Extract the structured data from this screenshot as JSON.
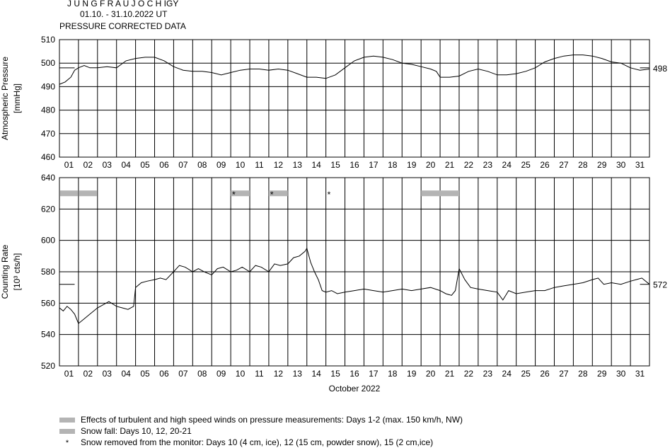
{
  "header": {
    "station": "J U N G F R A U J O C H  IGY",
    "period": "01.10. - 31.10.2022  UT",
    "subtitle": "PRESSURE CORRECTED DATA"
  },
  "chart_data": [
    {
      "type": "line",
      "name": "pressure",
      "ylabel": "Atmospheric Pressure",
      "yunit": "[mmHg]",
      "ylim": [
        460,
        510
      ],
      "yticks": [
        460,
        470,
        480,
        490,
        500,
        510
      ],
      "reference_value": 498,
      "reference_label": "498",
      "grid": true,
      "x_start_day": 1,
      "x_end_day": 32,
      "day_labels": [
        "01",
        "02",
        "03",
        "04",
        "05",
        "06",
        "07",
        "08",
        "09",
        "10",
        "11",
        "12",
        "13",
        "14",
        "15",
        "16",
        "17",
        "18",
        "19",
        "20",
        "21",
        "22",
        "23",
        "24",
        "25",
        "26",
        "27",
        "28",
        "29",
        "30",
        "31"
      ],
      "series": [
        {
          "x": [
            1.0,
            1.3,
            1.6,
            1.8,
            2.0,
            2.3,
            2.6,
            3.0,
            3.5,
            4.0,
            4.5,
            5.0,
            5.5,
            6.0,
            6.5,
            7.0,
            7.5,
            8.0,
            8.5,
            9.0,
            9.5,
            10.0,
            10.5,
            11.0,
            11.5,
            12.0,
            12.5,
            13.0,
            13.5,
            14.0,
            14.5,
            15.0,
            15.5,
            16.0,
            16.5,
            17.0,
            17.5,
            18.0,
            18.5,
            19.0,
            19.5,
            20.0,
            20.5,
            20.8,
            21.0,
            21.5,
            22.0,
            22.5,
            23.0,
            23.5,
            24.0,
            24.5,
            25.0,
            25.5,
            26.0,
            26.5,
            27.0,
            27.5,
            28.0,
            28.5,
            29.0,
            29.5,
            30.0,
            30.5,
            31.0,
            31.5,
            32.0
          ],
          "values": [
            491,
            492,
            494,
            497,
            498,
            499,
            498,
            498,
            498.5,
            498,
            501,
            502,
            502.5,
            502.5,
            501,
            498.5,
            497,
            496.5,
            496.5,
            496,
            495,
            496,
            497,
            497.5,
            497.5,
            497,
            497.5,
            497,
            495.5,
            494,
            494,
            493.5,
            495,
            498,
            501,
            502.5,
            503,
            502.5,
            501.5,
            500,
            499.5,
            498.5,
            497.5,
            496.5,
            494,
            494,
            494.5,
            496.5,
            497.5,
            496.5,
            495,
            495,
            495.5,
            496.5,
            498,
            500.5,
            502,
            503,
            503.5,
            503.5,
            503,
            502,
            500.5,
            500,
            498,
            497,
            497.5
          ]
        }
      ]
    },
    {
      "type": "line",
      "name": "counting_rate",
      "ylabel": "Counting Rate",
      "yunit": "[10³ cts/h]",
      "ylim": [
        520,
        640
      ],
      "yticks": [
        520,
        540,
        560,
        580,
        600,
        620,
        640
      ],
      "reference_value": 572,
      "reference_label": "572",
      "xlabel": "October 2022",
      "grid": true,
      "x_start_day": 1,
      "x_end_day": 32,
      "day_labels": [
        "01",
        "02",
        "03",
        "04",
        "05",
        "06",
        "07",
        "08",
        "09",
        "10",
        "11",
        "12",
        "13",
        "14",
        "15",
        "16",
        "17",
        "18",
        "19",
        "20",
        "21",
        "22",
        "23",
        "24",
        "25",
        "26",
        "27",
        "28",
        "29",
        "30",
        "31"
      ],
      "series": [
        {
          "x": [
            1.0,
            1.2,
            1.4,
            1.6,
            1.8,
            2.0,
            2.3,
            2.6,
            3.0,
            3.3,
            3.6,
            4.0,
            4.3,
            4.6,
            4.9,
            5.0,
            5.3,
            5.6,
            6.0,
            6.3,
            6.6,
            7.0,
            7.3,
            7.6,
            8.0,
            8.3,
            8.6,
            9.0,
            9.3,
            9.6,
            10.0,
            10.3,
            10.6,
            11.0,
            11.3,
            11.6,
            12.0,
            12.3,
            12.6,
            13.0,
            13.3,
            13.6,
            13.9,
            14.0,
            14.2,
            14.4,
            14.6,
            14.8,
            15.0,
            15.3,
            15.6,
            16.0,
            16.5,
            17.0,
            17.5,
            18.0,
            18.5,
            19.0,
            19.5,
            20.0,
            20.5,
            21.0,
            21.3,
            21.6,
            21.8,
            22.0,
            22.3,
            22.6,
            23.0,
            23.5,
            24.0,
            24.3,
            24.6,
            25.0,
            25.5,
            26.0,
            26.5,
            27.0,
            27.5,
            28.0,
            28.5,
            29.0,
            29.3,
            29.6,
            30.0,
            30.5,
            31.0,
            31.3,
            31.6,
            32.0
          ],
          "values": [
            557,
            555,
            558,
            556,
            553,
            547,
            550,
            553,
            557,
            559,
            561,
            558,
            557,
            556,
            558,
            570,
            573,
            574,
            575,
            576,
            575,
            580,
            584,
            583,
            580,
            582,
            580,
            578,
            582,
            583,
            580,
            581,
            583,
            580,
            584,
            583,
            580,
            585,
            584,
            585,
            589,
            590,
            593,
            595,
            586,
            580,
            575,
            568,
            567,
            568,
            566,
            567,
            568,
            569,
            568,
            567,
            568,
            569,
            568,
            569,
            570,
            568,
            566,
            565,
            568,
            582,
            575,
            570,
            569,
            568,
            567,
            562,
            568,
            566,
            567,
            568,
            568,
            570,
            571,
            572,
            573,
            575,
            576,
            572,
            573,
            572,
            574,
            575,
            576,
            572
          ]
        }
      ],
      "wind_bars_days": [
        [
          1,
          3
        ]
      ],
      "snow_bars_days": [
        [
          10,
          11
        ],
        [
          12,
          13
        ],
        [
          20,
          22
        ]
      ],
      "snow_removed_days": [
        10,
        12,
        15
      ]
    }
  ],
  "legend": {
    "wind": "Effects of turbulent and high speed winds on pressure measurements: Days 1-2 (max. 150 km/h, NW)",
    "snowfall": "Snow fall: Days 10, 12, 20-21",
    "star_symbol": "*",
    "removed": "Snow removed from the monitor: Days 10 (4 cm, ice), 12 (15 cm, powder snow), 15 (2 cm,ice)"
  },
  "colors": {
    "marker_bar": "#b4b4b4",
    "line": "#000000",
    "grid": "#000000"
  }
}
